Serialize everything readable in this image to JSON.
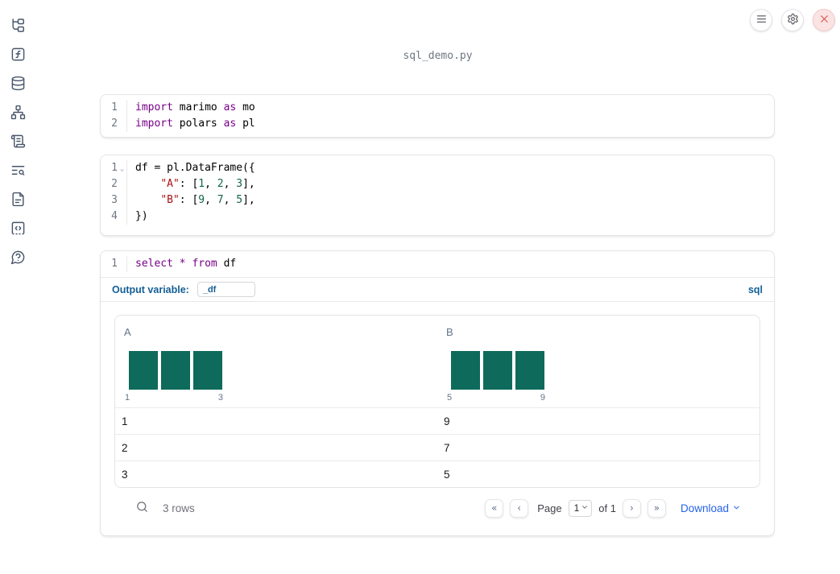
{
  "titlebar": {
    "title": "sql_demo.py"
  },
  "topbar": {
    "icons": [
      "menu-icon",
      "settings-gear-icon",
      "shutdown-x-icon"
    ]
  },
  "sidebar": {
    "icons": [
      "file-tree-icon",
      "function-square-icon",
      "database-icon",
      "dependency-graph-icon",
      "scroll-text-icon",
      "text-search-icon",
      "file-text-icon",
      "code-square-icon",
      "help-bubble-icon"
    ]
  },
  "cells": [
    {
      "id": "imports",
      "lines": [
        {
          "num": "1",
          "tokens": [
            {
              "c": "kw",
              "t": "import"
            },
            {
              "c": "pl",
              "t": " marimo "
            },
            {
              "c": "kw",
              "t": "as"
            },
            {
              "c": "pl",
              "t": " mo"
            }
          ]
        },
        {
          "num": "2",
          "tokens": [
            {
              "c": "kw",
              "t": "import"
            },
            {
              "c": "pl",
              "t": " polars "
            },
            {
              "c": "kw",
              "t": "as"
            },
            {
              "c": "pl",
              "t": " pl"
            }
          ]
        }
      ]
    },
    {
      "id": "dataframe",
      "lines": [
        {
          "num": "1",
          "fold": true,
          "tokens": [
            {
              "c": "pl",
              "t": "df = pl.DataFrame({"
            }
          ]
        },
        {
          "num": "2",
          "tokens": [
            {
              "c": "pl",
              "t": "    "
            },
            {
              "c": "str",
              "t": "\"A\""
            },
            {
              "c": "pl",
              "t": ": ["
            },
            {
              "c": "num",
              "t": "1"
            },
            {
              "c": "pl",
              "t": ", "
            },
            {
              "c": "num",
              "t": "2"
            },
            {
              "c": "pl",
              "t": ", "
            },
            {
              "c": "num",
              "t": "3"
            },
            {
              "c": "pl",
              "t": "],"
            }
          ]
        },
        {
          "num": "3",
          "tokens": [
            {
              "c": "pl",
              "t": "    "
            },
            {
              "c": "str",
              "t": "\"B\""
            },
            {
              "c": "pl",
              "t": ": ["
            },
            {
              "c": "num",
              "t": "9"
            },
            {
              "c": "pl",
              "t": ", "
            },
            {
              "c": "num",
              "t": "7"
            },
            {
              "c": "pl",
              "t": ", "
            },
            {
              "c": "num",
              "t": "5"
            },
            {
              "c": "pl",
              "t": "],"
            }
          ]
        },
        {
          "num": "4",
          "tokens": [
            {
              "c": "pl",
              "t": "})"
            }
          ]
        }
      ]
    },
    {
      "id": "sql",
      "lines": [
        {
          "num": "1",
          "tokens": [
            {
              "c": "kw",
              "t": "select"
            },
            {
              "c": "pl",
              "t": " "
            },
            {
              "c": "kw",
              "t": "*"
            },
            {
              "c": "pl",
              "t": " "
            },
            {
              "c": "kw",
              "t": "from"
            },
            {
              "c": "pl",
              "t": " df"
            }
          ]
        }
      ]
    }
  ],
  "sql_cell": {
    "output_variable_label": "Output variable:",
    "output_variable_value": "_df",
    "language_badge": "sql"
  },
  "table": {
    "columns": [
      {
        "header": "A",
        "histogram": {
          "bars": [
            1,
            1,
            1
          ],
          "min_label": "1",
          "max_label": "3",
          "bar_color": "#0e6a5b"
        }
      },
      {
        "header": "B",
        "histogram": {
          "bars": [
            1,
            1,
            1
          ],
          "min_label": "5",
          "max_label": "9",
          "bar_color": "#0e6a5b"
        }
      }
    ],
    "rows": [
      [
        "1",
        "9"
      ],
      [
        "2",
        "7"
      ],
      [
        "3",
        "5"
      ]
    ],
    "footer": {
      "row_count": "3 rows",
      "first_glyph": "«",
      "prev_glyph": "‹",
      "next_glyph": "›",
      "last_glyph": "»",
      "page_label": "Page",
      "page_value": "1",
      "of_label": "of 1",
      "download_label": "Download"
    }
  },
  "colors": {
    "bar": "#0e6a5b",
    "accent_blue": "#135e96",
    "link_blue": "#2563eb"
  }
}
